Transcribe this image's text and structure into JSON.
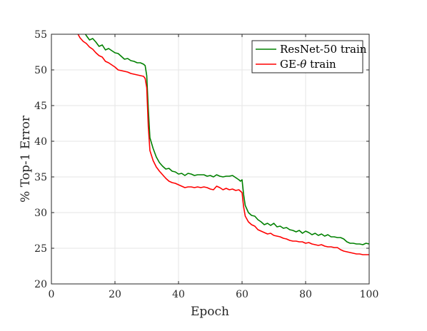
{
  "chart_data": {
    "type": "line",
    "xlabel": "Epoch",
    "ylabel": "% Top-1 Error",
    "xlim": [
      0,
      100
    ],
    "ylim": [
      20,
      55
    ],
    "xticks": [
      0,
      20,
      40,
      60,
      80,
      100
    ],
    "yticks": [
      20,
      25,
      30,
      35,
      40,
      45,
      50,
      55
    ],
    "grid": true,
    "legend_position": "top-right",
    "series": [
      {
        "name": "ResNet-50 train",
        "color": "#008000",
        "points": [
          [
            10,
            55.5
          ],
          [
            11,
            54.8
          ],
          [
            12,
            54.2
          ],
          [
            13,
            54.4
          ],
          [
            14,
            53.9
          ],
          [
            15,
            53.3
          ],
          [
            16,
            53.5
          ],
          [
            17,
            52.8
          ],
          [
            18,
            53.0
          ],
          [
            19,
            52.7
          ],
          [
            20,
            52.4
          ],
          [
            21,
            52.3
          ],
          [
            22,
            51.9
          ],
          [
            23,
            51.5
          ],
          [
            24,
            51.6
          ],
          [
            25,
            51.3
          ],
          [
            26,
            51.2
          ],
          [
            27,
            51.0
          ],
          [
            28,
            51.0
          ],
          [
            29,
            50.8
          ],
          [
            29.5,
            50.6
          ],
          [
            30,
            49.2
          ],
          [
            30.5,
            44.5
          ],
          [
            31,
            40.5
          ],
          [
            32,
            39.0
          ],
          [
            33,
            37.8
          ],
          [
            34,
            37.0
          ],
          [
            35,
            36.5
          ],
          [
            36,
            36.1
          ],
          [
            37,
            36.2
          ],
          [
            38,
            35.8
          ],
          [
            39,
            35.7
          ],
          [
            40,
            35.4
          ],
          [
            41,
            35.5
          ],
          [
            42,
            35.2
          ],
          [
            43,
            35.5
          ],
          [
            44,
            35.4
          ],
          [
            45,
            35.2
          ],
          [
            46,
            35.3
          ],
          [
            47,
            35.3
          ],
          [
            48,
            35.3
          ],
          [
            49,
            35.1
          ],
          [
            50,
            35.2
          ],
          [
            51,
            35.0
          ],
          [
            52,
            35.3
          ],
          [
            53,
            35.1
          ],
          [
            54,
            35.0
          ],
          [
            55,
            35.1
          ],
          [
            56,
            35.1
          ],
          [
            57,
            35.2
          ],
          [
            58,
            34.9
          ],
          [
            59,
            34.6
          ],
          [
            59.5,
            34.4
          ],
          [
            60,
            34.6
          ],
          [
            60.5,
            32.5
          ],
          [
            61,
            31.0
          ],
          [
            62,
            30.0
          ],
          [
            63,
            29.6
          ],
          [
            64,
            29.5
          ],
          [
            65,
            29.0
          ],
          [
            66,
            28.7
          ],
          [
            67,
            28.3
          ],
          [
            68,
            28.5
          ],
          [
            69,
            28.2
          ],
          [
            70,
            28.5
          ],
          [
            71,
            28.0
          ],
          [
            72,
            28.1
          ],
          [
            73,
            27.8
          ],
          [
            74,
            27.9
          ],
          [
            75,
            27.6
          ],
          [
            76,
            27.5
          ],
          [
            77,
            27.3
          ],
          [
            78,
            27.5
          ],
          [
            79,
            27.1
          ],
          [
            80,
            27.4
          ],
          [
            81,
            27.2
          ],
          [
            82,
            26.9
          ],
          [
            83,
            27.1
          ],
          [
            84,
            26.8
          ],
          [
            85,
            27.0
          ],
          [
            86,
            26.7
          ],
          [
            87,
            26.9
          ],
          [
            88,
            26.6
          ],
          [
            89,
            26.6
          ],
          [
            90,
            26.5
          ],
          [
            91,
            26.5
          ],
          [
            92,
            26.3
          ],
          [
            93,
            25.9
          ],
          [
            94,
            25.7
          ],
          [
            95,
            25.7
          ],
          [
            96,
            25.6
          ],
          [
            97,
            25.6
          ],
          [
            98,
            25.5
          ],
          [
            99,
            25.7
          ],
          [
            100,
            25.6
          ]
        ]
      },
      {
        "name": "GE-θ train",
        "color": "#ff0000",
        "points": [
          [
            8,
            55.3
          ],
          [
            9,
            54.5
          ],
          [
            10,
            54.0
          ],
          [
            11,
            53.7
          ],
          [
            12,
            53.2
          ],
          [
            13,
            52.9
          ],
          [
            14,
            52.4
          ],
          [
            15,
            52.0
          ],
          [
            16,
            51.8
          ],
          [
            17,
            51.2
          ],
          [
            18,
            51.0
          ],
          [
            19,
            50.7
          ],
          [
            20,
            50.4
          ],
          [
            21,
            50.0
          ],
          [
            22,
            49.9
          ],
          [
            23,
            49.8
          ],
          [
            24,
            49.7
          ],
          [
            25,
            49.5
          ],
          [
            26,
            49.4
          ],
          [
            27,
            49.3
          ],
          [
            28,
            49.2
          ],
          [
            29,
            49.1
          ],
          [
            29.5,
            48.8
          ],
          [
            30,
            47.5
          ],
          [
            30.5,
            42.0
          ],
          [
            31,
            38.7
          ],
          [
            32,
            37.3
          ],
          [
            33,
            36.4
          ],
          [
            34,
            35.8
          ],
          [
            35,
            35.3
          ],
          [
            36,
            34.8
          ],
          [
            37,
            34.4
          ],
          [
            38,
            34.2
          ],
          [
            39,
            34.1
          ],
          [
            40,
            33.9
          ],
          [
            41,
            33.7
          ],
          [
            42,
            33.5
          ],
          [
            43,
            33.6
          ],
          [
            44,
            33.6
          ],
          [
            45,
            33.5
          ],
          [
            46,
            33.6
          ],
          [
            47,
            33.5
          ],
          [
            48,
            33.6
          ],
          [
            49,
            33.5
          ],
          [
            50,
            33.3
          ],
          [
            51,
            33.2
          ],
          [
            52,
            33.7
          ],
          [
            53,
            33.5
          ],
          [
            54,
            33.2
          ],
          [
            55,
            33.4
          ],
          [
            56,
            33.2
          ],
          [
            57,
            33.3
          ],
          [
            58,
            33.1
          ],
          [
            59,
            33.2
          ],
          [
            59.5,
            33.0
          ],
          [
            60,
            32.8
          ],
          [
            60.5,
            30.8
          ],
          [
            61,
            29.5
          ],
          [
            62,
            28.7
          ],
          [
            63,
            28.3
          ],
          [
            64,
            28.1
          ],
          [
            65,
            27.6
          ],
          [
            66,
            27.4
          ],
          [
            67,
            27.2
          ],
          [
            68,
            27.0
          ],
          [
            69,
            27.1
          ],
          [
            70,
            26.8
          ],
          [
            71,
            26.7
          ],
          [
            72,
            26.6
          ],
          [
            73,
            26.4
          ],
          [
            74,
            26.3
          ],
          [
            75,
            26.1
          ],
          [
            76,
            26.0
          ],
          [
            77,
            26.0
          ],
          [
            78,
            25.9
          ],
          [
            79,
            25.9
          ],
          [
            80,
            25.7
          ],
          [
            81,
            25.8
          ],
          [
            82,
            25.6
          ],
          [
            83,
            25.5
          ],
          [
            84,
            25.4
          ],
          [
            85,
            25.5
          ],
          [
            86,
            25.3
          ],
          [
            87,
            25.2
          ],
          [
            88,
            25.2
          ],
          [
            89,
            25.1
          ],
          [
            90,
            25.1
          ],
          [
            91,
            24.8
          ],
          [
            92,
            24.6
          ],
          [
            93,
            24.5
          ],
          [
            94,
            24.4
          ],
          [
            95,
            24.3
          ],
          [
            96,
            24.2
          ],
          [
            97,
            24.2
          ],
          [
            98,
            24.1
          ],
          [
            99,
            24.1
          ],
          [
            100,
            24.1
          ]
        ]
      }
    ]
  },
  "legend": {
    "series_0_label": "ResNet-50 train",
    "series_1_label_prefix": "GE-",
    "series_1_label_theta": "θ",
    "series_1_label_suffix": " train"
  }
}
